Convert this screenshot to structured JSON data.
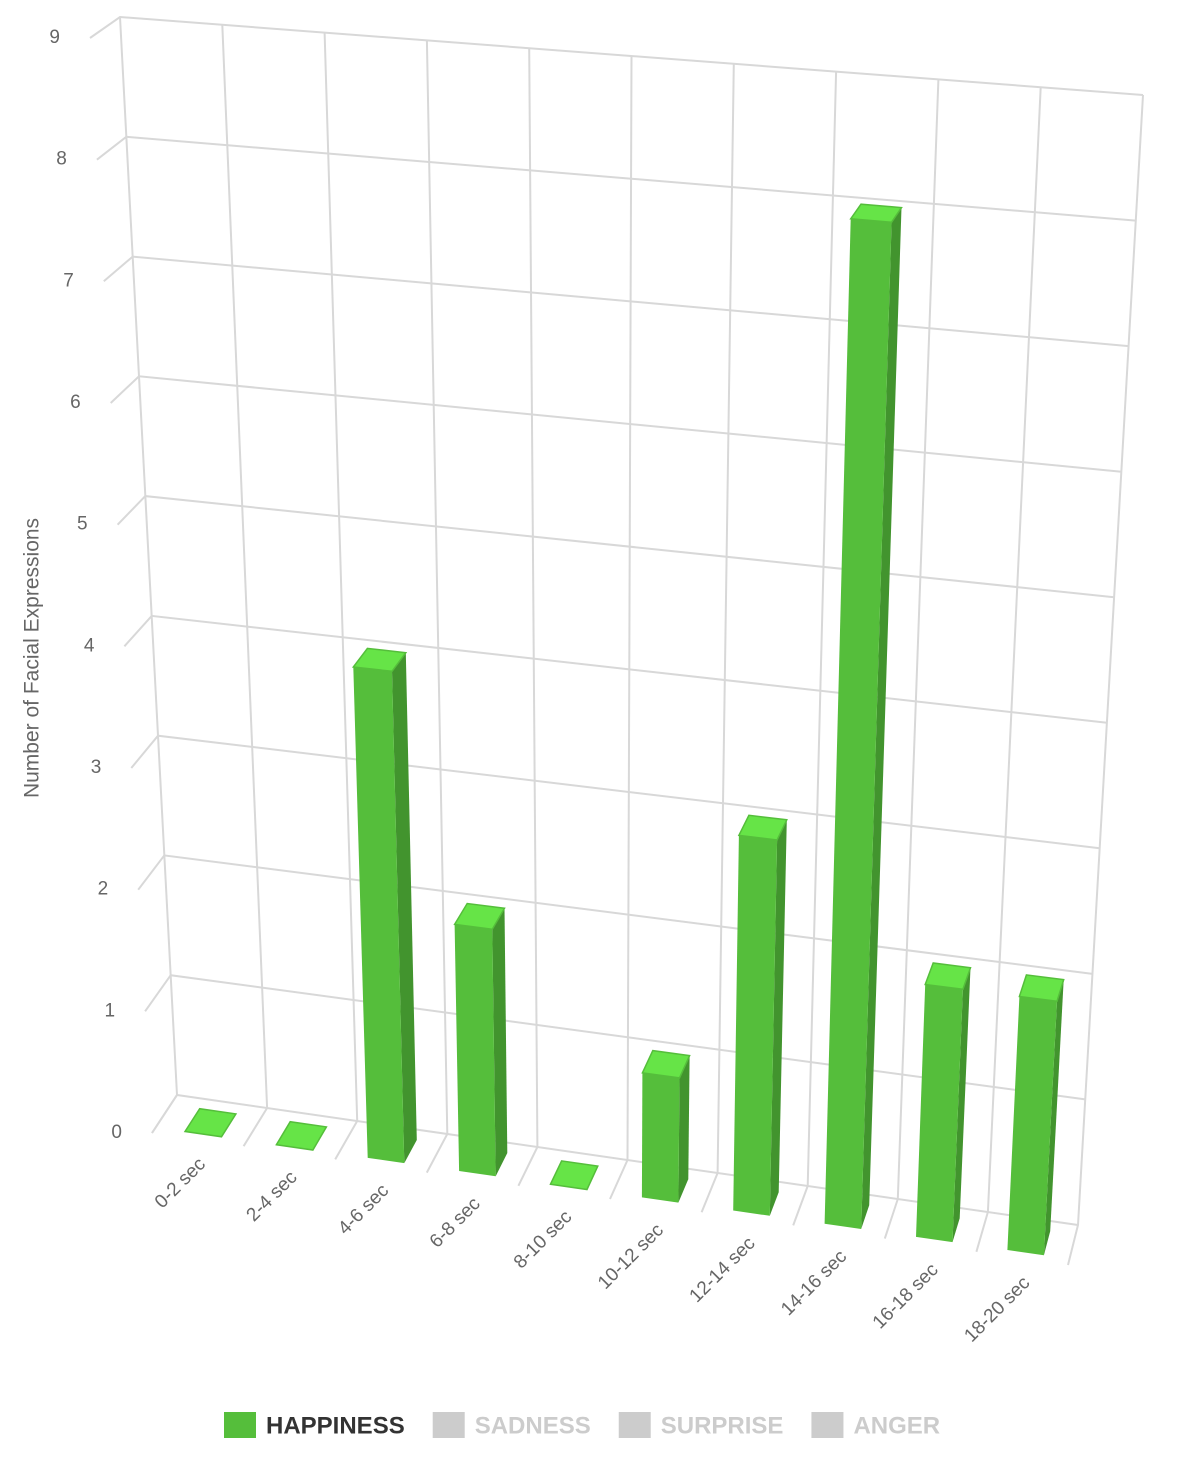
{
  "chart_data": {
    "type": "bar3d",
    "y_axis_label": "Number of Facial Expressions",
    "categories": [
      "0-2 sec",
      "2-4 sec",
      "4-6 sec",
      "6-8 sec",
      "8-10 sec",
      "10-12 sec",
      "12-14 sec",
      "14-16 sec",
      "16-18 sec",
      "18-20 sec"
    ],
    "series": [
      {
        "name": "HAPPINESS",
        "color": "#55be3b",
        "visible": true,
        "values": [
          0,
          0,
          4,
          2,
          0,
          1,
          3,
          8,
          2,
          2
        ]
      },
      {
        "name": "SADNESS",
        "color": "#cccccc",
        "visible": false
      },
      {
        "name": "SURPRISE",
        "color": "#cccccc",
        "visible": false
      },
      {
        "name": "ANGER",
        "color": "#cccccc",
        "visible": false
      }
    ],
    "ylim": [
      0,
      9
    ],
    "yticks": [
      0,
      1,
      2,
      3,
      4,
      5,
      6,
      7,
      8,
      9
    ],
    "grid": true
  }
}
